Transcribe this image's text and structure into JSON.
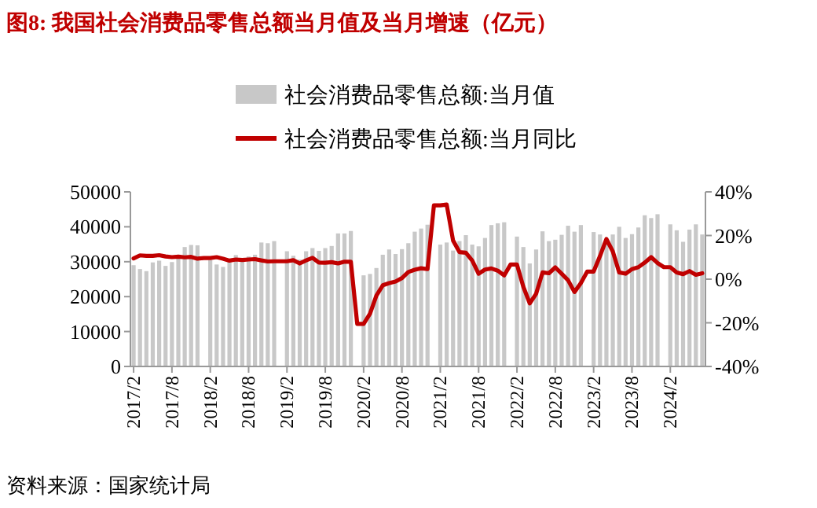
{
  "chart_data": {
    "type": "bar",
    "title": "图8:   我国社会消费品零售总额当月值及当月增速（亿元）",
    "categories": [
      "2017/2",
      null,
      null,
      null,
      null,
      null,
      "2017/8",
      null,
      null,
      null,
      null,
      null,
      "2018/2",
      null,
      null,
      null,
      null,
      null,
      "2018/8",
      null,
      null,
      null,
      null,
      null,
      "2019/2",
      null,
      null,
      null,
      null,
      null,
      "2019/8",
      null,
      null,
      null,
      null,
      null,
      "2020/2",
      null,
      null,
      null,
      null,
      null,
      "2020/8",
      null,
      null,
      null,
      null,
      null,
      "2021/2",
      null,
      null,
      null,
      null,
      null,
      "2021/8",
      null,
      null,
      null,
      null,
      null,
      "2022/2",
      null,
      null,
      null,
      null,
      null,
      "2022/8",
      null,
      null,
      null,
      null,
      null,
      "2023/2",
      null,
      null,
      null,
      null,
      null,
      "2023/8",
      null,
      null,
      null,
      null,
      null,
      "2024/2",
      null,
      null,
      null,
      null,
      null
    ],
    "series": [
      {
        "name": "社会消费品零售总额:当月值",
        "color": "#c8c8c8",
        "values": [
          29000,
          27900,
          27300,
          29800,
          30300,
          28800,
          29900,
          31800,
          34200,
          34800,
          34700,
          null,
          30500,
          29200,
          28500,
          30400,
          31900,
          30700,
          31500,
          32000,
          35500,
          35300,
          35900,
          null,
          33000,
          31700,
          30600,
          33000,
          33900,
          33100,
          33900,
          34500,
          38100,
          38100,
          38800,
          null,
          26100,
          26500,
          28200,
          32000,
          33500,
          32200,
          33600,
          35300,
          38600,
          39500,
          40600,
          null,
          34900,
          35500,
          33200,
          35900,
          37600,
          34900,
          34400,
          36800,
          40500,
          41000,
          41300,
          null,
          37200,
          34200,
          29500,
          33500,
          38700,
          35900,
          36300,
          37700,
          40300,
          38600,
          40500,
          null,
          38500,
          37800,
          34900,
          37800,
          40000,
          36800,
          37900,
          39800,
          43300,
          42500,
          43600,
          null,
          40700,
          39000,
          35700,
          39200,
          40700,
          37800
        ]
      },
      {
        "name": "社会消费品零售总额:当月同比",
        "type": "line",
        "axis": "y2",
        "color": "#c00000",
        "values": [
          9.5,
          10.9,
          10.7,
          10.7,
          11.0,
          10.4,
          10.1,
          10.3,
          10.0,
          10.2,
          9.4,
          9.7,
          9.7,
          10.1,
          9.4,
          8.5,
          9.0,
          8.8,
          9.0,
          9.2,
          8.6,
          8.1,
          8.2,
          8.2,
          8.2,
          8.7,
          7.2,
          8.6,
          9.8,
          7.6,
          7.5,
          7.8,
          7.2,
          8.0,
          8.0,
          -20.5,
          -20.5,
          -15.8,
          -7.5,
          -2.8,
          -1.8,
          -1.1,
          0.5,
          3.3,
          4.3,
          5.0,
          4.6,
          33.8,
          33.8,
          34.2,
          17.7,
          12.4,
          12.1,
          8.5,
          2.5,
          4.4,
          4.9,
          3.9,
          1.7,
          6.7,
          6.7,
          -3.5,
          -11.1,
          -6.7,
          3.1,
          2.7,
          5.4,
          2.5,
          -0.5,
          -5.9,
          -1.8,
          3.5,
          3.5,
          10.6,
          18.4,
          12.7,
          3.1,
          2.5,
          4.6,
          5.5,
          7.6,
          10.1,
          7.4,
          5.5,
          5.5,
          3.1,
          2.3,
          3.7,
          2.0,
          2.7
        ]
      }
    ],
    "ylim": [
      0,
      50000
    ],
    "yticks": [
      0,
      10000,
      20000,
      30000,
      40000,
      50000
    ],
    "y2lim": [
      -40,
      40
    ],
    "y2ticks": [
      {
        "value": -40,
        "label": "-40%"
      },
      {
        "value": -20,
        "label": "-20%"
      },
      {
        "value": 0,
        "label": "0%"
      },
      {
        "value": 20,
        "label": "20%"
      },
      {
        "value": 40,
        "label": "40%"
      }
    ],
    "legend": "top",
    "grid": false,
    "line_style": "solid",
    "marker": "none",
    "annotations": [
      "资料来源：国家统计局"
    ]
  }
}
